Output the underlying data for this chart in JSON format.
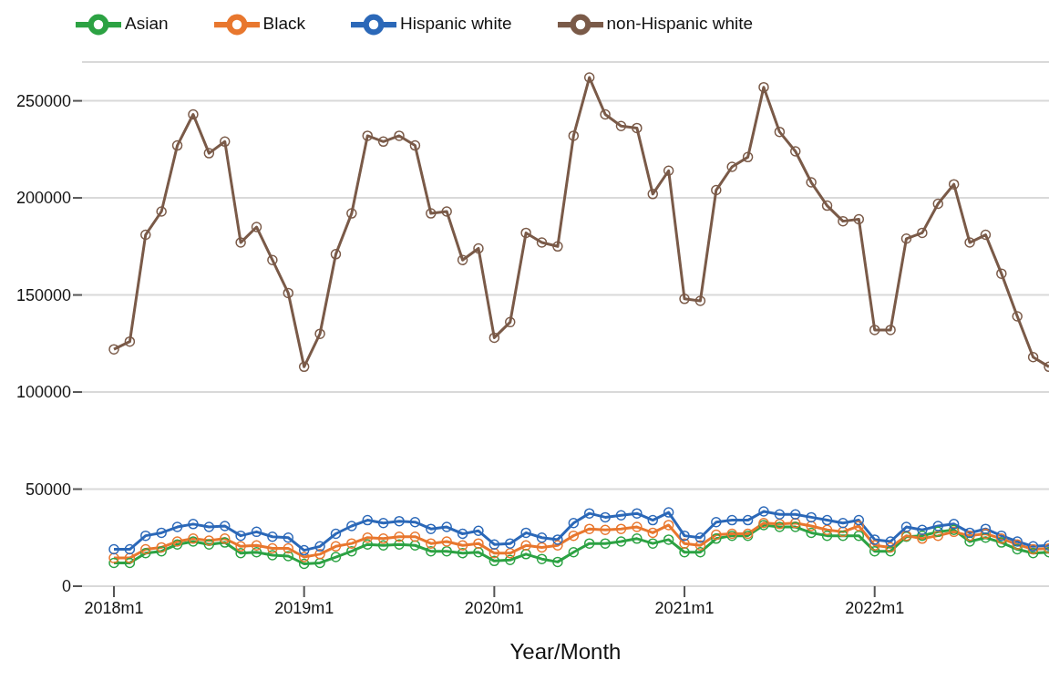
{
  "chart_data": {
    "type": "line",
    "xlabel": "Year/Month",
    "categories": [
      "2018m1",
      null,
      null,
      null,
      null,
      null,
      null,
      null,
      null,
      null,
      null,
      null,
      "2019m1",
      null,
      null,
      null,
      null,
      null,
      null,
      null,
      null,
      null,
      null,
      null,
      "2020m1",
      null,
      null,
      null,
      null,
      null,
      null,
      null,
      null,
      null,
      null,
      null,
      "2021m1",
      null,
      null,
      null,
      null,
      null,
      null,
      null,
      null,
      null,
      null,
      null,
      "2022m1",
      null,
      null,
      null,
      null,
      null,
      null,
      null,
      null,
      null,
      null,
      null
    ],
    "series": [
      {
        "name": "Asian",
        "color": "#2ca243",
        "values": [
          12000,
          12000,
          17000,
          18000,
          21500,
          23000,
          21500,
          22500,
          17000,
          17500,
          16000,
          15500,
          11500,
          12000,
          15000,
          18000,
          21500,
          21000,
          21500,
          21000,
          18000,
          18000,
          17000,
          17500,
          13000,
          13500,
          16500,
          14000,
          12500,
          17500,
          22000,
          22000,
          23000,
          24500,
          22000,
          24000,
          17500,
          17500,
          24500,
          26000,
          26000,
          31500,
          30500,
          30500,
          27500,
          26000,
          26000,
          26000,
          18000,
          18000,
          25500,
          26000,
          28000,
          29000,
          23000,
          25000,
          22500,
          19000,
          17000,
          17500
        ]
      },
      {
        "name": "Black",
        "color": "#e8772e",
        "values": [
          14500,
          14500,
          19000,
          20000,
          23000,
          24500,
          23500,
          24500,
          20500,
          21000,
          19500,
          19500,
          15000,
          16500,
          20500,
          22000,
          25000,
          24500,
          25500,
          25500,
          22000,
          23000,
          21000,
          22000,
          17000,
          17000,
          21000,
          20000,
          21000,
          26000,
          29500,
          29000,
          29500,
          30500,
          27500,
          31500,
          22000,
          21000,
          26500,
          27000,
          27000,
          32500,
          32000,
          32500,
          31000,
          29000,
          28000,
          31000,
          21000,
          20000,
          26000,
          24500,
          26000,
          28000,
          26000,
          27000,
          24500,
          21500,
          19000,
          19500
        ]
      },
      {
        "name": "Hispanic white",
        "color": "#2b68b8",
        "values": [
          19000,
          19000,
          26000,
          27500,
          30500,
          32000,
          30500,
          31000,
          26000,
          28000,
          25500,
          25000,
          18500,
          20500,
          27000,
          31000,
          34000,
          32500,
          33500,
          33000,
          29500,
          30500,
          27000,
          28500,
          21500,
          22000,
          27500,
          25000,
          24000,
          32500,
          37500,
          35500,
          36500,
          37500,
          34000,
          38000,
          26000,
          25000,
          33000,
          34000,
          34000,
          38500,
          37000,
          37000,
          35500,
          34000,
          32500,
          34000,
          24000,
          23000,
          30500,
          29000,
          31000,
          32000,
          27500,
          29500,
          26000,
          23000,
          20500,
          21000
        ]
      },
      {
        "name": "non-Hispanic white",
        "color": "#7a5a48",
        "values": [
          122000,
          126000,
          181000,
          193000,
          227000,
          243000,
          223000,
          229000,
          177000,
          185000,
          168000,
          151000,
          113000,
          130000,
          171000,
          192000,
          232000,
          229000,
          232000,
          227000,
          192000,
          193000,
          168000,
          174000,
          128000,
          136000,
          182000,
          177000,
          175000,
          232000,
          262000,
          243000,
          237000,
          236000,
          202000,
          214000,
          148000,
          147000,
          204000,
          216000,
          221000,
          257000,
          234000,
          224000,
          208000,
          196000,
          188000,
          189000,
          132000,
          132000,
          179000,
          182000,
          197000,
          207000,
          177000,
          181000,
          161000,
          139000,
          118000,
          113000
        ]
      }
    ],
    "ylim": [
      0,
      270000
    ],
    "yticks": [
      0,
      50000,
      100000,
      150000,
      200000,
      250000
    ],
    "grid": "y",
    "legend": "top left",
    "marker": "circle",
    "line_style": "solid"
  }
}
